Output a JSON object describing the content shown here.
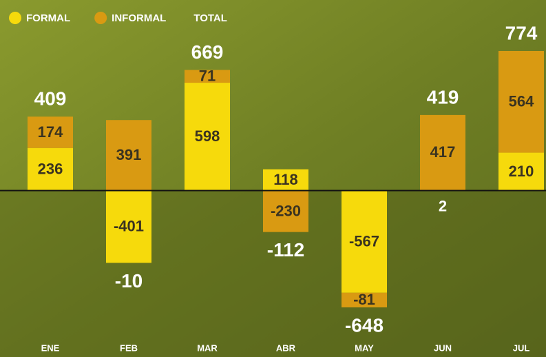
{
  "chart_data": {
    "type": "bar",
    "stacked": true,
    "categories": [
      "ENE",
      "FEB",
      "MAR",
      "ABR",
      "MAY",
      "JUN",
      "JUL"
    ],
    "series": [
      {
        "name": "FORMAL",
        "color": "#f6da0c",
        "values": [
          236,
          -401,
          598,
          118,
          -567,
          2,
          210
        ]
      },
      {
        "name": "INFORMAL",
        "color": "#d99a12",
        "values": [
          174,
          391,
          71,
          -230,
          -81,
          417,
          564
        ]
      }
    ],
    "totals": {
      "name": "TOTAL",
      "values": [
        409,
        -10,
        669,
        -112,
        -648,
        419,
        774
      ]
    }
  }
}
